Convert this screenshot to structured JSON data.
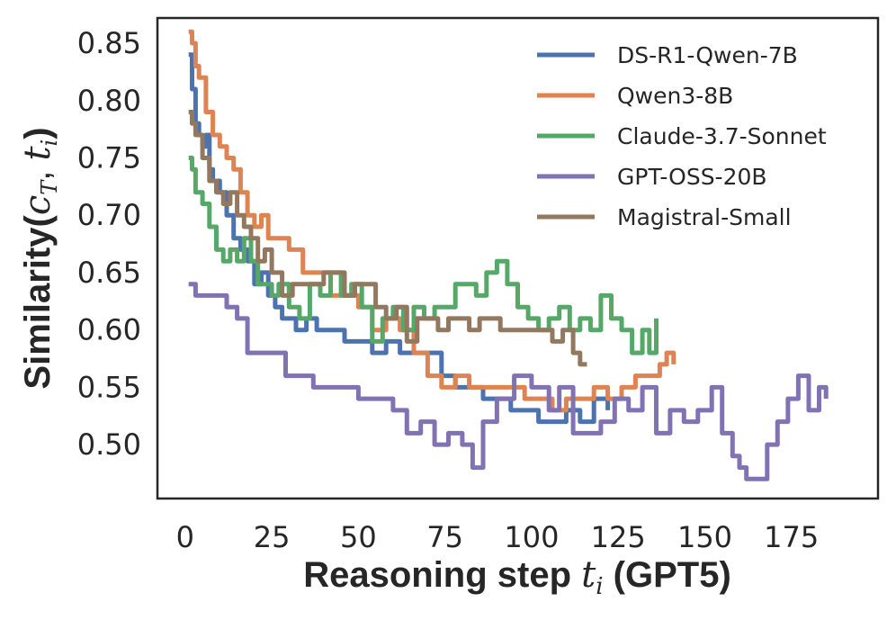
{
  "chart_data": {
    "type": "line",
    "ylabel_text": "Similarity(",
    "ylabel_math": "c_T, t_i",
    "ylabel_close": ")",
    "ylabel_var_c": "c",
    "ylabel_sub_T": "T",
    "ylabel_comma": ", ",
    "ylabel_var_t": "t",
    "ylabel_sub_i": "i",
    "xlabel_pre": "Reasoning step ",
    "xlabel_var": "t",
    "xlabel_sub": "i",
    "xlabel_post": " (GPT5)",
    "xlim": [
      -8,
      200
    ],
    "ylim": [
      0.453,
      0.872
    ],
    "xticks": [
      0,
      25,
      50,
      75,
      100,
      125,
      150,
      175
    ],
    "xtick_labels": [
      "0",
      "25",
      "50",
      "75",
      "100",
      "125",
      "150",
      "175"
    ],
    "yticks": [
      0.5,
      0.55,
      0.6,
      0.65,
      0.7,
      0.75,
      0.8,
      0.85
    ],
    "ytick_labels": [
      "0.50",
      "0.55",
      "0.60",
      "0.65",
      "0.70",
      "0.75",
      "0.80",
      "0.85"
    ],
    "grid": false,
    "legend_location": "top-right",
    "series": [
      {
        "name": "DS-R1-Qwen-7B",
        "color": "#4c72b0",
        "x": [
          1,
          2,
          3,
          4,
          5,
          6,
          7,
          8,
          10,
          12,
          14,
          16,
          18,
          20,
          22,
          24,
          26,
          28,
          30,
          32,
          35,
          38,
          42,
          46,
          50,
          54,
          58,
          62,
          66,
          70,
          74,
          78,
          82,
          86,
          90,
          94,
          98,
          102,
          106,
          110,
          114,
          118,
          122
        ],
        "y": [
          0.84,
          0.81,
          0.78,
          0.77,
          0.76,
          0.77,
          0.74,
          0.73,
          0.72,
          0.7,
          0.68,
          0.67,
          0.66,
          0.64,
          0.65,
          0.63,
          0.62,
          0.61,
          0.61,
          0.6,
          0.61,
          0.6,
          0.6,
          0.59,
          0.59,
          0.58,
          0.59,
          0.58,
          0.58,
          0.58,
          0.56,
          0.55,
          0.55,
          0.54,
          0.54,
          0.53,
          0.53,
          0.52,
          0.52,
          0.53,
          0.52,
          0.54,
          0.53
        ]
      },
      {
        "name": "Qwen3-8B",
        "color": "#dd8452",
        "x": [
          1,
          2,
          3,
          4,
          6,
          8,
          10,
          12,
          14,
          16,
          18,
          20,
          22,
          24,
          26,
          30,
          34,
          38,
          42,
          46,
          50,
          54,
          58,
          62,
          66,
          70,
          74,
          78,
          82,
          86,
          90,
          94,
          98,
          102,
          106,
          110,
          114,
          118,
          122,
          126,
          130,
          134,
          137,
          139,
          141
        ],
        "y": [
          0.86,
          0.85,
          0.83,
          0.82,
          0.79,
          0.77,
          0.76,
          0.75,
          0.74,
          0.72,
          0.7,
          0.69,
          0.7,
          0.68,
          0.68,
          0.67,
          0.65,
          0.65,
          0.63,
          0.63,
          0.62,
          0.6,
          0.61,
          0.6,
          0.58,
          0.56,
          0.55,
          0.56,
          0.55,
          0.55,
          0.55,
          0.55,
          0.54,
          0.54,
          0.53,
          0.54,
          0.54,
          0.55,
          0.54,
          0.55,
          0.56,
          0.56,
          0.57,
          0.58,
          0.57
        ]
      },
      {
        "name": "Claude-3.7-Sonnet",
        "color": "#55a868",
        "x": [
          1,
          2,
          3,
          5,
          7,
          9,
          11,
          13,
          15,
          17,
          19,
          21,
          23,
          25,
          27,
          30,
          33,
          36,
          39,
          42,
          45,
          48,
          51,
          54,
          57,
          60,
          63,
          66,
          69,
          72,
          75,
          78,
          81,
          84,
          87,
          90,
          93,
          96,
          99,
          102,
          105,
          108,
          111,
          114,
          117,
          120,
          123,
          126,
          129,
          132,
          134,
          136
        ],
        "y": [
          0.75,
          0.74,
          0.72,
          0.71,
          0.69,
          0.67,
          0.66,
          0.67,
          0.66,
          0.68,
          0.66,
          0.64,
          0.64,
          0.63,
          0.64,
          0.62,
          0.61,
          0.64,
          0.63,
          0.65,
          0.63,
          0.64,
          0.62,
          0.59,
          0.61,
          0.62,
          0.6,
          0.62,
          0.61,
          0.62,
          0.62,
          0.64,
          0.64,
          0.63,
          0.65,
          0.66,
          0.64,
          0.62,
          0.61,
          0.6,
          0.61,
          0.62,
          0.6,
          0.61,
          0.6,
          0.63,
          0.61,
          0.6,
          0.58,
          0.6,
          0.58,
          0.61
        ]
      },
      {
        "name": "GPT-OSS-20B",
        "color": "#8172b3",
        "x": [
          1,
          3,
          6,
          9,
          12,
          15,
          18,
          21,
          25,
          29,
          33,
          37,
          41,
          45,
          50,
          55,
          60,
          64,
          68,
          72,
          76,
          80,
          83,
          86,
          90,
          95,
          100,
          105,
          108,
          112,
          116,
          120,
          124,
          128,
          132,
          136,
          140,
          144,
          148,
          152,
          155,
          158,
          160,
          162,
          165,
          168,
          171,
          174,
          177,
          180,
          183,
          185
        ],
        "y": [
          0.64,
          0.63,
          0.63,
          0.63,
          0.62,
          0.61,
          0.58,
          0.58,
          0.58,
          0.56,
          0.56,
          0.55,
          0.55,
          0.55,
          0.54,
          0.54,
          0.53,
          0.51,
          0.52,
          0.5,
          0.51,
          0.5,
          0.48,
          0.52,
          0.54,
          0.56,
          0.55,
          0.53,
          0.55,
          0.51,
          0.51,
          0.52,
          0.54,
          0.53,
          0.55,
          0.51,
          0.53,
          0.52,
          0.53,
          0.55,
          0.51,
          0.49,
          0.48,
          0.47,
          0.47,
          0.5,
          0.52,
          0.54,
          0.56,
          0.53,
          0.55,
          0.54
        ]
      },
      {
        "name": "Magistral-Small",
        "color": "#937860",
        "x": [
          1,
          2,
          3,
          5,
          7,
          9,
          11,
          13,
          15,
          17,
          19,
          21,
          23,
          25,
          28,
          31,
          34,
          37,
          40,
          43,
          46,
          49,
          52,
          55,
          58,
          61,
          64,
          67,
          70,
          73,
          76,
          79,
          82,
          85,
          88,
          91,
          94,
          97,
          100,
          103,
          106,
          109,
          112,
          114,
          116
        ],
        "y": [
          0.79,
          0.78,
          0.77,
          0.75,
          0.73,
          0.72,
          0.71,
          0.72,
          0.7,
          0.69,
          0.68,
          0.66,
          0.67,
          0.65,
          0.63,
          0.64,
          0.64,
          0.64,
          0.65,
          0.65,
          0.63,
          0.64,
          0.64,
          0.62,
          0.61,
          0.62,
          0.59,
          0.61,
          0.61,
          0.6,
          0.61,
          0.61,
          0.6,
          0.61,
          0.61,
          0.6,
          0.6,
          0.6,
          0.6,
          0.6,
          0.59,
          0.6,
          0.58,
          0.57,
          0.57
        ]
      }
    ]
  }
}
